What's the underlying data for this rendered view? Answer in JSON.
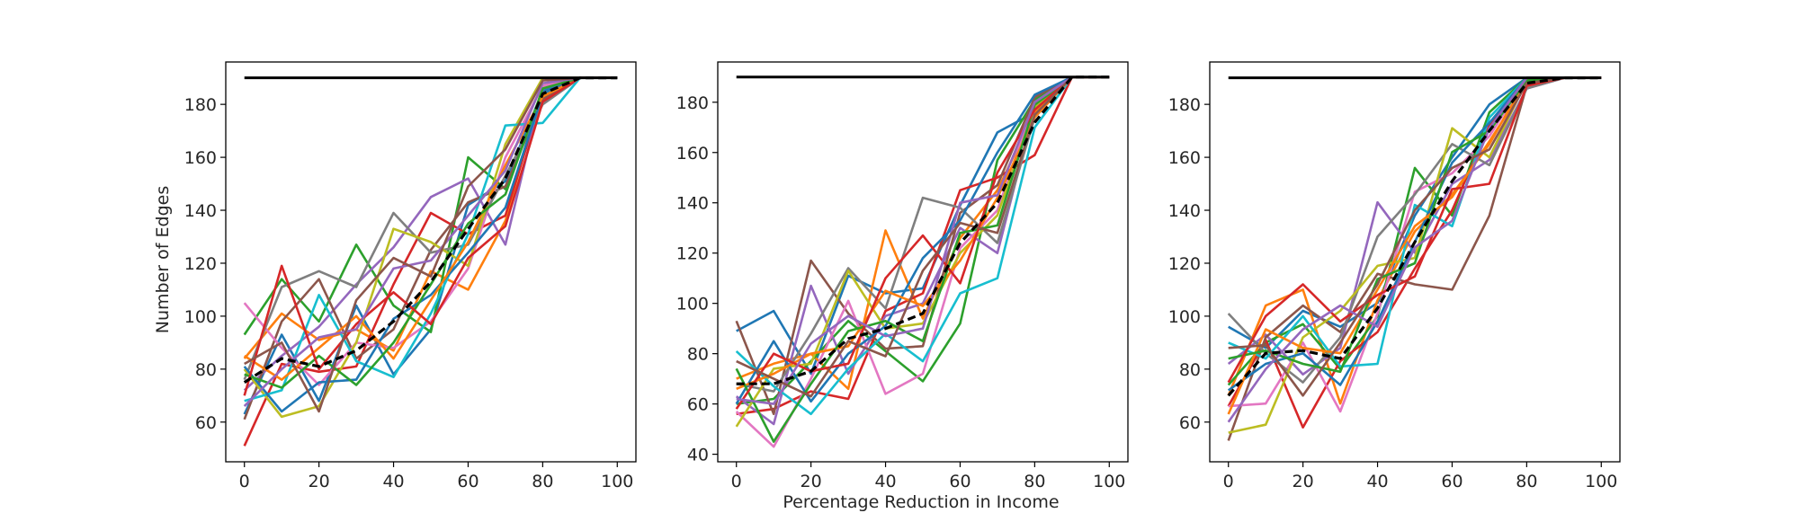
{
  "figure": {
    "ylabel": "Number of Edges",
    "xlabel": "Percentage Reduction in Income"
  },
  "palette": [
    "#1f77b4",
    "#ff7f0e",
    "#2ca02c",
    "#d62728",
    "#9467bd",
    "#8c564b",
    "#e377c2",
    "#7f7f7f",
    "#bcbd22",
    "#17becf"
  ],
  "chart_data": [
    {
      "type": "line",
      "xlabel": "",
      "ylabel": "Number of Edges",
      "xlim": [
        -5,
        105
      ],
      "ylim": [
        45,
        196
      ],
      "xticks": [
        0,
        20,
        40,
        60,
        80,
        100
      ],
      "yticks": [
        60,
        80,
        100,
        120,
        140,
        160,
        180
      ],
      "x": [
        0,
        10,
        20,
        30,
        40,
        50,
        60,
        70,
        80,
        90,
        100
      ],
      "reference": {
        "y": 190,
        "x": [
          0,
          100
        ],
        "color": "#000000"
      },
      "mean": [
        75,
        84,
        81,
        87,
        98,
        113,
        133,
        152,
        184,
        190,
        190
      ],
      "series": [
        {
          "values": [
            63,
            93,
            68,
            104,
            78,
            95,
            142,
            151,
            185,
            190,
            190
          ]
        },
        {
          "values": [
            84,
            101,
            91,
            95,
            87,
            117,
            110,
            136,
            187,
            190,
            190
          ]
        },
        {
          "values": [
            93,
            114,
            98,
            127,
            104,
            94,
            160,
            148,
            184,
            190,
            190
          ]
        },
        {
          "values": [
            51,
            82,
            79,
            81,
            112,
            139,
            131,
            138,
            184,
            190,
            190
          ]
        },
        {
          "values": [
            72,
            85,
            96,
            112,
            126,
            145,
            152,
            127,
            186,
            190,
            190
          ]
        },
        {
          "values": [
            61,
            98,
            114,
            84,
            95,
            125,
            143,
            149,
            182,
            190,
            190
          ]
        },
        {
          "values": [
            105,
            88,
            74,
            90,
            88,
            98,
            118,
            160,
            187,
            190,
            190
          ]
        },
        {
          "values": [
            76,
            111,
            117,
            111,
            139,
            124,
            127,
            153,
            180,
            190,
            190
          ]
        },
        {
          "values": [
            80,
            62,
            66,
            90,
            133,
            128,
            119,
            165,
            190,
            190,
            190
          ]
        },
        {
          "values": [
            68,
            72,
            108,
            83,
            77,
            101,
            131,
            172,
            173,
            190,
            190
          ]
        },
        {
          "values": [
            81,
            64,
            75,
            76,
            99,
            108,
            124,
            141,
            184,
            190,
            190
          ]
        },
        {
          "values": [
            85,
            76,
            88,
            100,
            84,
            106,
            128,
            157,
            183,
            190,
            190
          ]
        },
        {
          "values": [
            78,
            73,
            85,
            74,
            90,
            112,
            135,
            146,
            186,
            190,
            190
          ]
        },
        {
          "values": [
            70,
            119,
            80,
            97,
            109,
            97,
            122,
            134,
            181,
            190,
            190
          ]
        },
        {
          "values": [
            66,
            80,
            92,
            95,
            118,
            121,
            138,
            155,
            188,
            190,
            190
          ]
        },
        {
          "values": [
            82,
            90,
            64,
            106,
            122,
            115,
            149,
            163,
            189,
            190,
            190
          ]
        }
      ]
    },
    {
      "type": "line",
      "xlabel": "Percentage Reduction in Income",
      "ylabel": "",
      "xlim": [
        -5,
        105
      ],
      "ylim": [
        37,
        196
      ],
      "xticks": [
        0,
        20,
        40,
        60,
        80,
        100
      ],
      "yticks": [
        40,
        60,
        80,
        100,
        120,
        140,
        160,
        180
      ],
      "x": [
        0,
        10,
        20,
        30,
        40,
        50,
        60,
        70,
        80,
        90,
        100
      ],
      "reference": {
        "y": 190,
        "x": [
          0,
          100
        ],
        "color": "#000000"
      },
      "mean": [
        68,
        68,
        73,
        86,
        90,
        96,
        124,
        140,
        172,
        190,
        190
      ],
      "series": [
        {
          "values": [
            89,
            97,
            72,
            111,
            104,
            106,
            139,
            168,
            176,
            190,
            190
          ]
        },
        {
          "values": [
            70,
            76,
            80,
            66,
            129,
            94,
            126,
            145,
            176,
            190,
            190
          ]
        },
        {
          "values": [
            60,
            62,
            77,
            93,
            81,
            69,
            92,
            157,
            181,
            190,
            190
          ]
        },
        {
          "values": [
            56,
            58,
            65,
            62,
            97,
            104,
            145,
            150,
            159,
            190,
            190
          ]
        },
        {
          "values": [
            63,
            52,
            107,
            72,
            95,
            100,
            130,
            120,
            178,
            190,
            190
          ]
        },
        {
          "values": [
            93,
            56,
            117,
            96,
            82,
            83,
            136,
            147,
            182,
            190,
            190
          ]
        },
        {
          "values": [
            57,
            43,
            70,
            101,
            64,
            72,
            122,
            137,
            180,
            190,
            190
          ]
        },
        {
          "values": [
            68,
            65,
            88,
            114,
            98,
            142,
            138,
            124,
            174,
            190,
            190
          ]
        },
        {
          "values": [
            51,
            74,
            76,
            113,
            90,
            92,
            120,
            135,
            178,
            190,
            190
          ]
        },
        {
          "values": [
            81,
            67,
            56,
            74,
            88,
            77,
            104,
            110,
            170,
            190,
            190
          ]
        },
        {
          "values": [
            60,
            85,
            61,
            80,
            91,
            118,
            133,
            160,
            183,
            190,
            190
          ]
        },
        {
          "values": [
            66,
            72,
            80,
            83,
            105,
            99,
            117,
            142,
            174,
            190,
            190
          ]
        },
        {
          "values": [
            74,
            45,
            68,
            89,
            93,
            85,
            128,
            131,
            179,
            190,
            190
          ]
        },
        {
          "values": [
            58,
            80,
            73,
            76,
            110,
            127,
            108,
            152,
            177,
            190,
            190
          ]
        },
        {
          "values": [
            62,
            60,
            84,
            95,
            87,
            90,
            140,
            143,
            180,
            190,
            190
          ]
        },
        {
          "values": [
            77,
            70,
            63,
            85,
            79,
            113,
            132,
            128,
            175,
            190,
            190
          ]
        }
      ]
    },
    {
      "type": "line",
      "xlabel": "",
      "ylabel": "",
      "xlim": [
        -5,
        105
      ],
      "ylim": [
        45,
        196
      ],
      "xticks": [
        0,
        20,
        40,
        60,
        80,
        100
      ],
      "yticks": [
        60,
        80,
        100,
        120,
        140,
        160,
        180
      ],
      "x": [
        0,
        10,
        20,
        30,
        40,
        50,
        60,
        70,
        80,
        90,
        100
      ],
      "reference": {
        "y": 190,
        "x": [
          0,
          100
        ],
        "color": "#000000"
      },
      "mean": [
        70,
        86,
        87,
        84,
        103,
        128,
        151,
        170,
        188,
        190,
        190
      ],
      "series": [
        {
          "values": [
            96,
            88,
            102,
            96,
            105,
            138,
            160,
            180,
            190,
            190,
            190
          ]
        },
        {
          "values": [
            70,
            104,
            110,
            67,
            106,
            132,
            146,
            165,
            190,
            190,
            190
          ]
        },
        {
          "values": [
            74,
            90,
            97,
            80,
            100,
            156,
            138,
            177,
            190,
            190,
            190
          ]
        },
        {
          "values": [
            66,
            91,
            58,
            83,
            94,
            118,
            140,
            172,
            188,
            190,
            190
          ]
        },
        {
          "values": [
            82,
            93,
            78,
            88,
            143,
            124,
            150,
            159,
            186,
            190,
            190
          ]
        },
        {
          "values": [
            53,
            92,
            104,
            94,
            116,
            112,
            110,
            138,
            187,
            190,
            190
          ]
        },
        {
          "values": [
            66,
            67,
            90,
            64,
            101,
            147,
            154,
            168,
            190,
            190,
            190
          ]
        },
        {
          "values": [
            101,
            86,
            75,
            92,
            130,
            146,
            165,
            157,
            186,
            190,
            190
          ]
        },
        {
          "values": [
            56,
            59,
            92,
            102,
            119,
            122,
            171,
            160,
            189,
            190,
            190
          ]
        },
        {
          "values": [
            90,
            84,
            100,
            81,
            82,
            142,
            134,
            175,
            190,
            190,
            190
          ]
        },
        {
          "values": [
            72,
            82,
            86,
            74,
            98,
            128,
            158,
            173,
            190,
            190,
            190
          ]
        },
        {
          "values": [
            63,
            95,
            88,
            86,
            110,
            134,
            145,
            166,
            188,
            190,
            190
          ]
        },
        {
          "values": [
            84,
            87,
            82,
            79,
            114,
            120,
            162,
            170,
            189,
            190,
            190
          ]
        },
        {
          "values": [
            75,
            100,
            112,
            98,
            108,
            115,
            148,
            150,
            187,
            190,
            190
          ]
        },
        {
          "values": [
            60,
            80,
            95,
            104,
            96,
            126,
            136,
            171,
            190,
            190,
            190
          ]
        },
        {
          "values": [
            88,
            89,
            70,
            90,
            112,
            140,
            156,
            163,
            188,
            190,
            190
          ]
        }
      ]
    }
  ]
}
